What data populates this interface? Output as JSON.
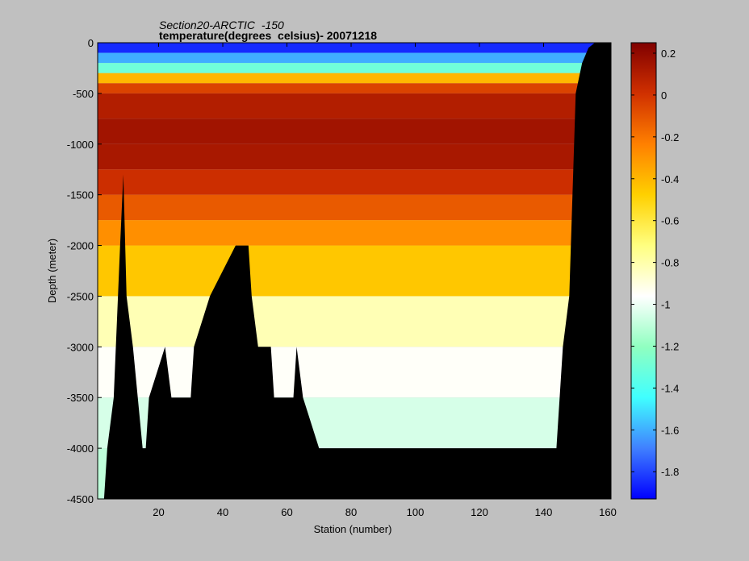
{
  "window": {
    "background": "#c0c0c0"
  },
  "chart_data": {
    "type": "heatmap",
    "title": "Section20-ARCTIC  -150",
    "subtitle": "temperature(degrees  celsius)- 20071218",
    "xlabel": "Station (number)",
    "ylabel": "Depth (meter)",
    "xlim": [
      1,
      161
    ],
    "ylim": [
      -4500,
      0
    ],
    "xticks": [
      20,
      40,
      60,
      80,
      100,
      120,
      140,
      160
    ],
    "yticks": [
      0,
      -500,
      -1000,
      -1500,
      -2000,
      -2500,
      -3000,
      -3500,
      -4000,
      -4500
    ],
    "colorbar": {
      "clim": [
        -1.93,
        0.25
      ],
      "ticks": [
        0.2,
        0,
        -0.2,
        -0.4,
        -0.6,
        -0.8,
        -1,
        -1.2,
        -1.4,
        -1.6,
        -1.8
      ],
      "colormap": [
        "#0000ff",
        "#4080ff",
        "#40ffff",
        "#90ffc0",
        "#ffffff",
        "#ffff80",
        "#ffd000",
        "#ff8000",
        "#d03000",
        "#800000"
      ]
    },
    "land_color": "#000000",
    "depth_levels": [
      {
        "top": 0,
        "bottom": -100,
        "temp": -1.85
      },
      {
        "top": -100,
        "bottom": -200,
        "temp": -1.6
      },
      {
        "top": -200,
        "bottom": -300,
        "temp": -1.3
      },
      {
        "top": -300,
        "bottom": -400,
        "temp": -0.4
      },
      {
        "top": -400,
        "bottom": -500,
        "temp": -0.05
      },
      {
        "top": -500,
        "bottom": -750,
        "temp": 0.1
      },
      {
        "top": -750,
        "bottom": -1000,
        "temp": 0.15
      },
      {
        "top": -1000,
        "bottom": -1250,
        "temp": 0.13
      },
      {
        "top": -1250,
        "bottom": -1500,
        "temp": 0.02
      },
      {
        "top": -1500,
        "bottom": -1750,
        "temp": -0.12
      },
      {
        "top": -1750,
        "bottom": -2000,
        "temp": -0.28
      },
      {
        "top": -2000,
        "bottom": -2500,
        "temp": -0.45
      },
      {
        "top": -2500,
        "bottom": -3000,
        "temp": -0.82
      },
      {
        "top": -3000,
        "bottom": -3500,
        "temp": -0.95
      },
      {
        "top": -3500,
        "bottom": -4000,
        "temp": -1.05
      },
      {
        "top": -4000,
        "bottom": -4500,
        "temp": -1.1
      }
    ],
    "bottom_depth": [
      {
        "station": 1,
        "depth": -4500
      },
      {
        "station": 3,
        "depth": -4500
      },
      {
        "station": 4,
        "depth": -4000
      },
      {
        "station": 6,
        "depth": -3500
      },
      {
        "station": 8,
        "depth": -2000
      },
      {
        "station": 9,
        "depth": -1300
      },
      {
        "station": 10,
        "depth": -2500
      },
      {
        "station": 12,
        "depth": -3000
      },
      {
        "station": 15,
        "depth": -4000
      },
      {
        "station": 16,
        "depth": -4000
      },
      {
        "station": 17,
        "depth": -3500
      },
      {
        "station": 22,
        "depth": -3000
      },
      {
        "station": 24,
        "depth": -3500
      },
      {
        "station": 30,
        "depth": -3500
      },
      {
        "station": 31,
        "depth": -3000
      },
      {
        "station": 36,
        "depth": -2500
      },
      {
        "station": 44,
        "depth": -2000
      },
      {
        "station": 48,
        "depth": -2000
      },
      {
        "station": 49,
        "depth": -2500
      },
      {
        "station": 51,
        "depth": -3000
      },
      {
        "station": 55,
        "depth": -3000
      },
      {
        "station": 56,
        "depth": -3500
      },
      {
        "station": 62,
        "depth": -3500
      },
      {
        "station": 63,
        "depth": -3000
      },
      {
        "station": 65,
        "depth": -3500
      },
      {
        "station": 70,
        "depth": -4000
      },
      {
        "station": 144,
        "depth": -4000
      },
      {
        "station": 145,
        "depth": -3500
      },
      {
        "station": 146,
        "depth": -3000
      },
      {
        "station": 148,
        "depth": -2500
      },
      {
        "station": 149,
        "depth": -1500
      },
      {
        "station": 150,
        "depth": -500
      },
      {
        "station": 152,
        "depth": -200
      },
      {
        "station": 154,
        "depth": -50
      },
      {
        "station": 156,
        "depth": 0
      },
      {
        "station": 161,
        "depth": 0
      }
    ]
  }
}
